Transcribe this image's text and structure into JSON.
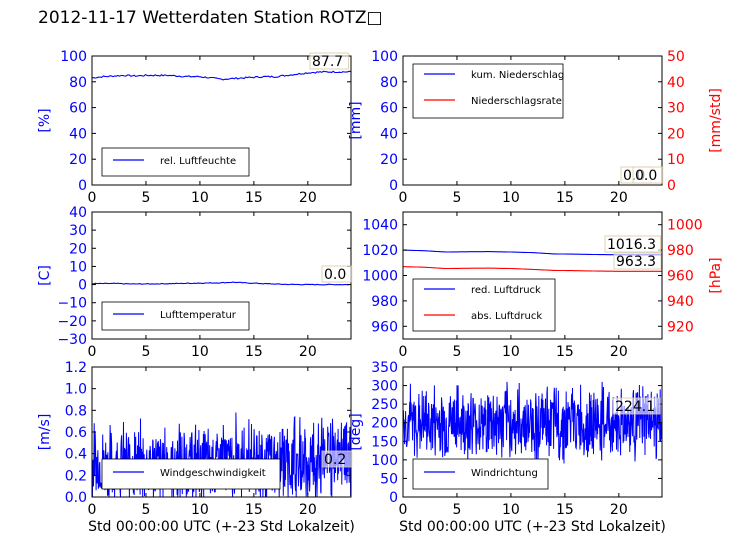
{
  "page": {
    "title": "2012-11-17 Wetterdaten Station ROTZ□"
  },
  "colors": {
    "blue": "#0000ff",
    "red": "#ff0000",
    "axis": "#000000"
  },
  "chart_data": [
    {
      "type": "line",
      "panel": "humidity",
      "ylabel": "[%]",
      "ylabel_color": "#0000ff",
      "ylim": [
        0,
        100
      ],
      "yticks": [
        "0",
        "20",
        "40",
        "60",
        "80",
        "100"
      ],
      "ytick_color": "#0000ff",
      "xlim": [
        0,
        24
      ],
      "xticks": [
        "0",
        "5",
        "10",
        "15",
        "20"
      ],
      "xlabel": "",
      "legend_position": "lower-left",
      "series": [
        {
          "name": "rel. Luftfeuchte",
          "color": "#0000ff",
          "noise": 0.6,
          "x": [
            0,
            1,
            2,
            3,
            4,
            5,
            6,
            7,
            8,
            9,
            10,
            11,
            12,
            13,
            14,
            15,
            16,
            17,
            18,
            19,
            20,
            21,
            22,
            23,
            24
          ],
          "values": [
            83,
            84,
            84.5,
            85,
            84.5,
            85,
            85,
            85,
            84.5,
            84,
            84,
            83,
            82,
            82.5,
            83,
            83.5,
            84,
            84,
            85,
            86,
            87,
            87.5,
            87.7,
            87.7,
            87.7
          ]
        }
      ],
      "last_value_label": "87.7"
    },
    {
      "type": "line",
      "panel": "precipitation",
      "ylabel": "[mm]",
      "ylabel_color": "#0000ff",
      "ylim": [
        0,
        100
      ],
      "yticks": [
        "0",
        "20",
        "40",
        "60",
        "80",
        "100"
      ],
      "ytick_color": "#0000ff",
      "ylabel_right": "[mm/std]",
      "ylabel_right_color": "#ff0000",
      "ylim_right": [
        0,
        50
      ],
      "yticks_right": [
        "0",
        "10",
        "20",
        "30",
        "40",
        "50"
      ],
      "xlim": [
        0,
        24
      ],
      "xticks": [
        "0",
        "5",
        "10",
        "15",
        "20"
      ],
      "xlabel": "",
      "legend_position": "upper-left",
      "series": [
        {
          "name": "kum. Niederschlag",
          "color": "#0000ff",
          "noise": 0,
          "axis": "left",
          "x": [
            0,
            24
          ],
          "values": [
            0,
            0
          ]
        },
        {
          "name": "Niederschlagsrate",
          "color": "#ff0000",
          "noise": 0,
          "axis": "right",
          "x": [
            0,
            24
          ],
          "values": [
            0,
            0
          ]
        }
      ],
      "last_value_labels": [
        "0.0",
        "0.0"
      ]
    },
    {
      "type": "line",
      "panel": "temperature",
      "ylabel": "[C]",
      "ylabel_color": "#0000ff",
      "ylim": [
        -30,
        40
      ],
      "yticks": [
        "−30",
        "−20",
        "−10",
        "0",
        "10",
        "20",
        "30",
        "40"
      ],
      "ytick_color": "#0000ff",
      "xlim": [
        0,
        24
      ],
      "xticks": [
        "0",
        "5",
        "10",
        "15",
        "20"
      ],
      "xlabel": "",
      "legend_position": "lower-left",
      "series": [
        {
          "name": "Lufttemperatur",
          "color": "#0000ff",
          "noise": 0.2,
          "x": [
            0,
            2,
            4,
            6,
            8,
            10,
            12,
            13,
            14,
            16,
            18,
            20,
            22,
            24
          ],
          "values": [
            0.5,
            0.6,
            0.3,
            0.4,
            0.6,
            0.8,
            1.0,
            1.3,
            1.0,
            0.5,
            0.1,
            0.0,
            0.0,
            0.0
          ]
        }
      ],
      "last_value_label": "0.0"
    },
    {
      "type": "line",
      "panel": "pressure",
      "ylabel": "",
      "ylabel_color": "#0000ff",
      "ylim": [
        950,
        1050
      ],
      "yticks": [
        "960",
        "980",
        "1000",
        "1020",
        "1040"
      ],
      "ytick_color": "#0000ff",
      "ylabel_right": "[hPa]",
      "ylabel_right_color": "#ff0000",
      "ylim_right": [
        910,
        1010
      ],
      "yticks_right": [
        "920",
        "940",
        "960",
        "980",
        "1000"
      ],
      "xlim": [
        0,
        24
      ],
      "xticks": [
        "0",
        "5",
        "10",
        "15",
        "20"
      ],
      "xlabel": "",
      "legend_position": "lower-left",
      "series": [
        {
          "name": "red. Luftdruck",
          "color": "#0000ff",
          "noise": 0,
          "axis": "left",
          "x": [
            0,
            2,
            4,
            6,
            8,
            10,
            12,
            14,
            16,
            18,
            20,
            22,
            24
          ],
          "values": [
            1020,
            1019.5,
            1018.5,
            1018.7,
            1018.8,
            1018.5,
            1018,
            1017,
            1016.8,
            1016.5,
            1016.3,
            1016.3,
            1016.3
          ]
        },
        {
          "name": "abs. Luftdruck",
          "color": "#ff0000",
          "noise": 0,
          "axis": "right",
          "x": [
            0,
            2,
            4,
            6,
            8,
            10,
            12,
            14,
            16,
            18,
            20,
            22,
            24
          ],
          "values": [
            967,
            966.5,
            965.5,
            965.7,
            965.8,
            965.5,
            964.8,
            964,
            963.8,
            963.5,
            963.3,
            963.3,
            963.3
          ]
        }
      ],
      "last_value_labels": [
        "1016.3",
        "963.3"
      ]
    },
    {
      "type": "line",
      "panel": "wind_speed",
      "ylabel": "[m/s]",
      "ylabel_color": "#0000ff",
      "ylim": [
        0,
        1.2
      ],
      "yticks": [
        "0.0",
        "0.2",
        "0.4",
        "0.6",
        "0.8",
        "1.0",
        "1.2"
      ],
      "ytick_color": "#0000ff",
      "xlim": [
        0,
        24
      ],
      "xticks": [
        "0",
        "5",
        "10",
        "15",
        "20"
      ],
      "xlabel": "Std 00:00:00 UTC (+-23 Std Lokalzeit)",
      "legend_position": "lower-left",
      "series": [
        {
          "name": "Windgeschwindigkeit",
          "color": "#0000ff",
          "noisy": true,
          "base": 0.3,
          "amplitude": 0.45,
          "min": 0.0,
          "max": 1.1
        }
      ],
      "last_value_label": "0.2"
    },
    {
      "type": "line",
      "panel": "wind_direction",
      "ylabel": "[deg]",
      "ylabel_color": "#0000ff",
      "ylim": [
        0,
        350
      ],
      "yticks": [
        "0",
        "50",
        "100",
        "150",
        "200",
        "250",
        "300",
        "350"
      ],
      "ytick_color": "#0000ff",
      "xlim": [
        0,
        24
      ],
      "xticks": [
        "0",
        "5",
        "10",
        "15",
        "20"
      ],
      "xlabel": "Std 00:00:00 UTC (+-23 Std Lokalzeit)",
      "legend_position": "lower-left",
      "series": [
        {
          "name": "Windrichtung",
          "color": "#0000ff",
          "noisy": true,
          "base": 200,
          "amplitude": 120,
          "min": 60,
          "max": 310
        }
      ],
      "last_value_label": "224.1"
    }
  ]
}
